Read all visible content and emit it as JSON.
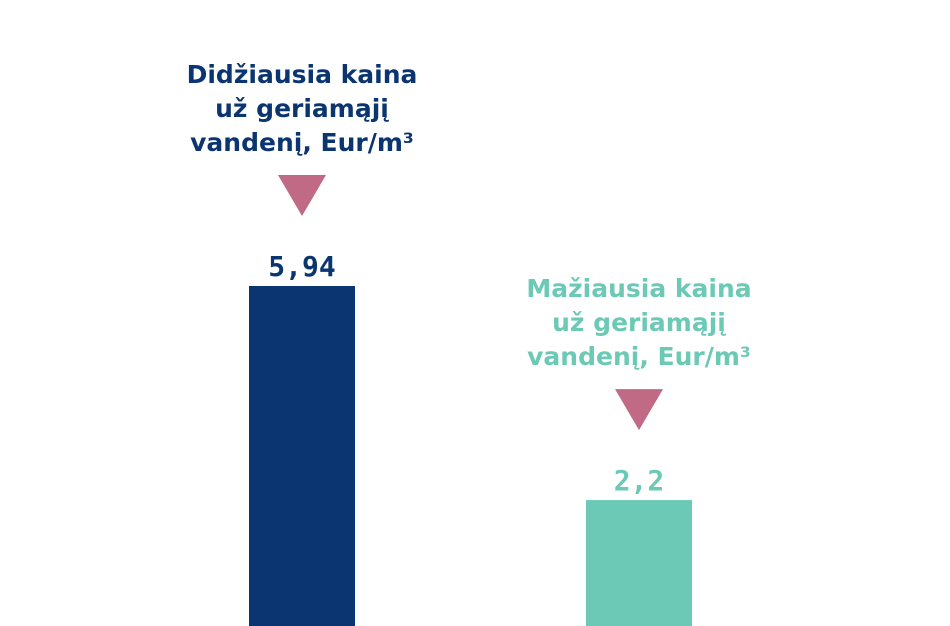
{
  "chart_data": {
    "type": "bar",
    "categories": [
      [
        "Didžiausia kaina",
        "už geriamąjį",
        "vandenį, Eur/m³"
      ],
      [
        "Mažiausia kaina",
        "už geriamąjį",
        "vandenį, Eur/m³"
      ]
    ],
    "values": [
      5.94,
      2.2
    ],
    "value_labels": [
      "5,94",
      "2,2"
    ],
    "colors": [
      "#0b3570",
      "#6bc9b6"
    ],
    "marker_color": "#c06a85",
    "ylim": [
      0,
      5.94
    ]
  }
}
